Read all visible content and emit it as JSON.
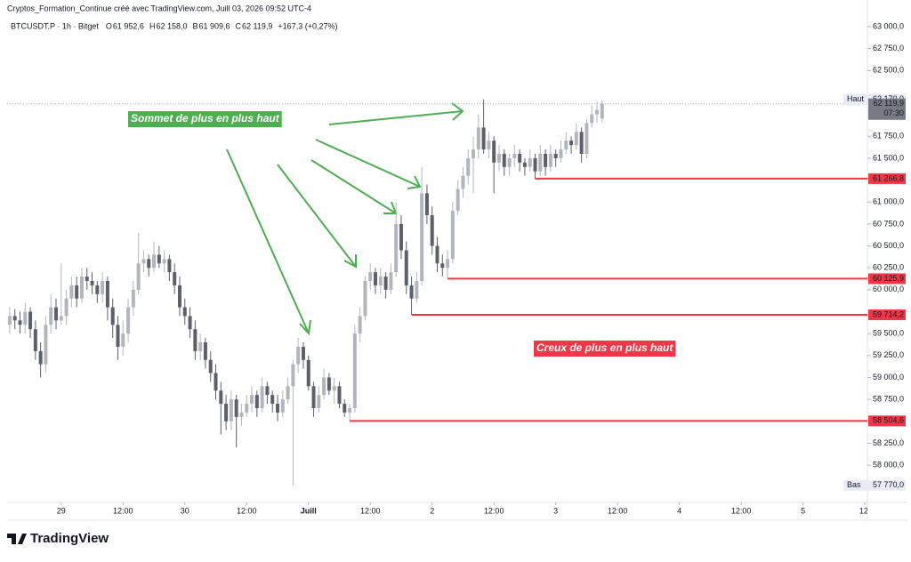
{
  "header": "Cryptos_Formation_Continue créé avec TradingView.com, Juill 03, 2026 09:52 UTC-4",
  "legend": {
    "symbol": "BTCUSDT.P · 1h · Bitget",
    "items": [
      {
        "key": "O",
        "value": "61 952,6"
      },
      {
        "key": "H",
        "value": "62 158,0"
      },
      {
        "key": "B",
        "value": "61 909,6"
      },
      {
        "key": "C",
        "value": "62 119,9"
      }
    ],
    "change": "+167,3 (+0,27%)"
  },
  "logo": "TradingView",
  "chart_data": {
    "type": "candlestick",
    "up_color": "#b2b5be",
    "down_color": "#5d606b",
    "level_color": "#f23645",
    "xlim": [
      -10.5,
      156.5
    ],
    "ylim": [
      57575,
      63304
    ],
    "xticks": [
      {
        "value": 0,
        "label": "29"
      },
      {
        "value": 12,
        "label": "12:00"
      },
      {
        "value": 24,
        "label": "30"
      },
      {
        "value": 36,
        "label": "12:00"
      },
      {
        "value": 48,
        "label": "Juill"
      },
      {
        "value": 60,
        "label": "12:00"
      },
      {
        "value": 72,
        "label": "2"
      },
      {
        "value": 84,
        "label": "12:00"
      },
      {
        "value": 96,
        "label": "3"
      },
      {
        "value": 108,
        "label": "12:00"
      },
      {
        "value": 120,
        "label": "4"
      },
      {
        "value": 132,
        "label": "12:00"
      },
      {
        "value": 144,
        "label": "5"
      },
      {
        "value": 156,
        "label": "12:"
      }
    ],
    "yticks": [
      {
        "value": 63000,
        "label": "63 000,0"
      },
      {
        "value": 62750,
        "label": "62 750,0"
      },
      {
        "value": 62500,
        "label": "62 500,0"
      },
      {
        "value": 61750,
        "label": "61 750,0"
      },
      {
        "value": 61500,
        "label": "61 500,0"
      },
      {
        "value": 61000,
        "label": "61 000,0"
      },
      {
        "value": 60750,
        "label": "60 750,0"
      },
      {
        "value": 60500,
        "label": "60 500,0"
      },
      {
        "value": 60250,
        "label": "60 250,0"
      },
      {
        "value": 60000,
        "label": "60 000,0"
      },
      {
        "value": 59500,
        "label": "59 500,0"
      },
      {
        "value": 59250,
        "label": "59 250,0"
      },
      {
        "value": 59000,
        "label": "59 000,0"
      },
      {
        "value": 58750,
        "label": "58 750,0"
      },
      {
        "value": 58250,
        "label": "58 250,0"
      },
      {
        "value": 58000,
        "label": "58 000,0"
      }
    ],
    "x": [
      -10,
      -9,
      -8,
      -7,
      -6,
      -5,
      -4,
      -3,
      -2,
      -1,
      0,
      1,
      2,
      3,
      4,
      5,
      6,
      7,
      8,
      9,
      10,
      11,
      12,
      13,
      14,
      15,
      16,
      17,
      18,
      19,
      20,
      21,
      22,
      23,
      24,
      25,
      26,
      27,
      28,
      29,
      30,
      31,
      32,
      33,
      34,
      35,
      36,
      37,
      38,
      39,
      40,
      41,
      42,
      43,
      44,
      45,
      46,
      47,
      48,
      49,
      50,
      51,
      52,
      53,
      54,
      55,
      56,
      57,
      58,
      59,
      60,
      61,
      62,
      63,
      64,
      65,
      66,
      67,
      68,
      69,
      70,
      71,
      72,
      73,
      74,
      75,
      76,
      77,
      78,
      79,
      80,
      81,
      82,
      83,
      84,
      85,
      86,
      87,
      88,
      89,
      90,
      91,
      92,
      93,
      94,
      95,
      96,
      97,
      98,
      99,
      100,
      101,
      102,
      103,
      104,
      105
    ],
    "candles": [
      [
        59600,
        59800,
        59500,
        59700
      ],
      [
        59700,
        59780,
        59550,
        59650
      ],
      [
        59650,
        59750,
        59500,
        59600
      ],
      [
        59600,
        59850,
        59500,
        59750
      ],
      [
        59750,
        59800,
        59450,
        59550
      ],
      [
        59550,
        59650,
        59200,
        59300
      ],
      [
        59300,
        59400,
        59000,
        59150
      ],
      [
        59150,
        59700,
        59050,
        59600
      ],
      [
        59600,
        59950,
        59500,
        59800
      ],
      [
        59800,
        59900,
        59550,
        59650
      ],
      [
        59650,
        60300,
        59600,
        59700
      ],
      [
        59700,
        60000,
        59600,
        59900
      ],
      [
        59900,
        60150,
        59800,
        60050
      ],
      [
        60050,
        60150,
        59800,
        59900
      ],
      [
        59900,
        60250,
        59850,
        60150
      ],
      [
        60150,
        60250,
        60000,
        60100
      ],
      [
        60100,
        60200,
        59950,
        60050
      ],
      [
        60050,
        60100,
        59850,
        59950
      ],
      [
        59950,
        60200,
        59850,
        60100
      ],
      [
        60100,
        60150,
        59650,
        59800
      ],
      [
        59800,
        59900,
        59450,
        59600
      ],
      [
        59600,
        59700,
        59200,
        59350
      ],
      [
        59350,
        59650,
        59250,
        59500
      ],
      [
        59500,
        59900,
        59400,
        59800
      ],
      [
        59800,
        60100,
        59700,
        60000
      ],
      [
        60000,
        60650,
        59950,
        60300
      ],
      [
        60300,
        60450,
        60200,
        60350
      ],
      [
        60350,
        60400,
        60150,
        60250
      ],
      [
        60250,
        60550,
        60200,
        60400
      ],
      [
        60400,
        60500,
        60250,
        60300
      ],
      [
        60300,
        60450,
        60200,
        60350
      ],
      [
        60350,
        60400,
        60100,
        60200
      ],
      [
        60200,
        60300,
        59950,
        60050
      ],
      [
        60050,
        60150,
        59700,
        59800
      ],
      [
        59800,
        59900,
        59600,
        59700
      ],
      [
        59700,
        59800,
        59450,
        59550
      ],
      [
        59550,
        59650,
        59200,
        59300
      ],
      [
        59300,
        59500,
        59200,
        59400
      ],
      [
        59400,
        59450,
        59100,
        59200
      ],
      [
        59200,
        59300,
        58950,
        59050
      ],
      [
        59050,
        59150,
        58750,
        58850
      ],
      [
        58850,
        58950,
        58350,
        58700
      ],
      [
        58700,
        58800,
        58400,
        58500
      ],
      [
        58500,
        58850,
        58400,
        58750
      ],
      [
        58750,
        58800,
        58200,
        58550
      ],
      [
        58550,
        58700,
        58450,
        58600
      ],
      [
        58600,
        58800,
        58550,
        58700
      ],
      [
        58700,
        58900,
        58600,
        58800
      ],
      [
        58800,
        58850,
        58550,
        58650
      ],
      [
        58650,
        59000,
        58600,
        58900
      ],
      [
        58900,
        58950,
        58700,
        58800
      ],
      [
        58800,
        58850,
        58600,
        58700
      ],
      [
        58700,
        58800,
        58500,
        58600
      ],
      [
        58600,
        58850,
        58550,
        58750
      ],
      [
        58750,
        59000,
        58700,
        58900
      ],
      [
        58900,
        59200,
        57770,
        59150
      ],
      [
        59150,
        59450,
        59050,
        59350
      ],
      [
        59350,
        59400,
        59100,
        59200
      ],
      [
        59200,
        59250,
        58850,
        58900
      ],
      [
        58900,
        58950,
        58550,
        58650
      ],
      [
        58650,
        58900,
        58600,
        58800
      ],
      [
        58800,
        59100,
        58750,
        59000
      ],
      [
        59000,
        59050,
        58800,
        58850
      ],
      [
        58850,
        59000,
        58700,
        58900
      ],
      [
        58900,
        58950,
        58650,
        58700
      ],
      [
        58700,
        58750,
        58550,
        58600
      ],
      [
        58600,
        58700,
        58504.6,
        58650
      ],
      [
        58650,
        59600,
        58600,
        59500
      ],
      [
        59500,
        59800,
        59400,
        59700
      ],
      [
        59700,
        60150,
        59650,
        60100
      ],
      [
        60100,
        60300,
        60000,
        60200
      ],
      [
        60200,
        60250,
        59950,
        60050
      ],
      [
        60050,
        60250,
        59950,
        60150
      ],
      [
        60150,
        60200,
        59900,
        60000
      ],
      [
        60000,
        60300,
        59950,
        60200
      ],
      [
        60200,
        61000,
        60150,
        60750
      ],
      [
        60750,
        60850,
        60350,
        60450
      ],
      [
        60450,
        60550,
        59950,
        60050
      ],
      [
        60050,
        60150,
        59714.2,
        59900
      ],
      [
        59900,
        60200,
        59850,
        60100
      ],
      [
        60100,
        61400,
        60050,
        61100
      ],
      [
        61100,
        61200,
        60750,
        60850
      ],
      [
        60850,
        60950,
        60400,
        60500
      ],
      [
        60500,
        60600,
        60200,
        60300
      ],
      [
        60300,
        60400,
        60150,
        60250
      ],
      [
        60250,
        60450,
        60125.9,
        60350
      ],
      [
        60350,
        61000,
        60300,
        60900
      ],
      [
        60900,
        61250,
        60850,
        61150
      ],
      [
        61150,
        61400,
        61050,
        61300
      ],
      [
        61300,
        61600,
        61200,
        61500
      ],
      [
        61500,
        61750,
        61100,
        61600
      ],
      [
        61600,
        62000,
        61500,
        61850
      ],
      [
        61850,
        62170,
        61550,
        61600
      ],
      [
        61600,
        61800,
        61500,
        61700
      ],
      [
        61700,
        61750,
        61100,
        61450
      ],
      [
        61450,
        61650,
        61350,
        61550
      ],
      [
        61550,
        61600,
        61300,
        61400
      ],
      [
        61400,
        61550,
        61300,
        61500
      ],
      [
        61500,
        61650,
        61400,
        61550
      ],
      [
        61550,
        61600,
        61350,
        61450
      ],
      [
        61450,
        61500,
        61300,
        61400
      ],
      [
        61400,
        61600,
        61350,
        61500
      ],
      [
        61500,
        61550,
        61266.8,
        61350
      ],
      [
        61350,
        61650,
        61300,
        61550
      ],
      [
        61550,
        61600,
        61300,
        61400
      ],
      [
        61400,
        61650,
        61350,
        61550
      ],
      [
        61550,
        61600,
        61400,
        61500
      ],
      [
        61500,
        61700,
        61450,
        61600
      ],
      [
        61600,
        61800,
        61550,
        61700
      ],
      [
        61700,
        61750,
        61550,
        61650
      ],
      [
        61650,
        61900,
        61600,
        61800
      ],
      [
        61800,
        61850,
        61450,
        61550
      ],
      [
        61550,
        61950,
        61500,
        61900
      ],
      [
        61900,
        62100,
        61850,
        62000
      ],
      [
        62000,
        62150,
        61900,
        62050
      ],
      [
        61952.6,
        62158,
        61909.6,
        62119.9
      ]
    ],
    "levels": [
      {
        "value": 61266.8,
        "label": "61 266,8",
        "from": 92
      },
      {
        "value": 60125.9,
        "label": "60 125,9",
        "from": 75
      },
      {
        "value": 59714.2,
        "label": "59 714,2",
        "from": 68
      },
      {
        "value": 58504.6,
        "label": "58 504,6",
        "from": 56
      }
    ],
    "high": {
      "text": "Haut",
      "value": 62170,
      "label": "62 170,0"
    },
    "low": {
      "text": "Bas",
      "value": 57770,
      "label": "57 770,0"
    },
    "last": {
      "value": 62119.9,
      "label": "62 119,9",
      "countdown": "07:30"
    },
    "annotations": [
      {
        "text": "Sommet de plus en plus haut",
        "color": "#4caf50"
      },
      {
        "text": "Creux de plus en plus haut",
        "color": "#f23645"
      }
    ]
  }
}
